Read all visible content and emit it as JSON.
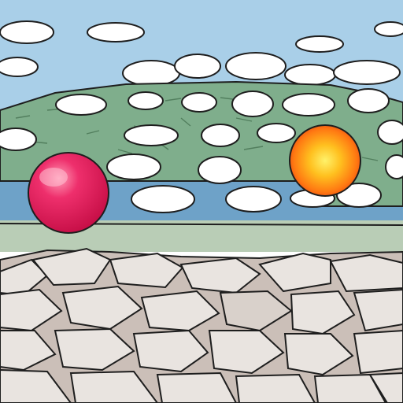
{
  "scene": {
    "palette": {
      "sky": "#a9cfe8",
      "hill": "#7fae8c",
      "hill_dark": "#6a9c79",
      "water": "#6ea2c8",
      "shore": "#b9cdb6",
      "ground": "#cbbfb8",
      "stone": "#e9e4e0",
      "outline": "#1e1e1e",
      "ball_red": "#e4175a",
      "ball_orange": "#ff7a12",
      "ball_yellow": "#ffd21f"
    },
    "icons": {
      "red_ball": "red-sphere-icon",
      "sun_ball": "orange-sphere-icon"
    }
  }
}
